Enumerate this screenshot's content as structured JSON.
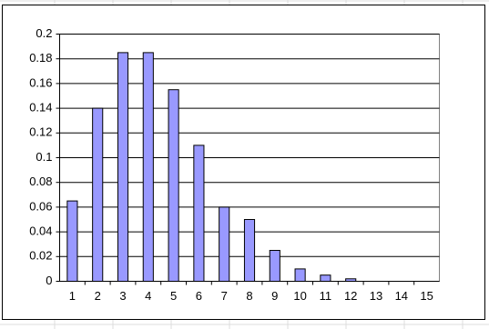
{
  "chart_data": {
    "type": "bar",
    "categories": [
      "1",
      "2",
      "3",
      "4",
      "5",
      "6",
      "7",
      "8",
      "9",
      "10",
      "11",
      "12",
      "13",
      "14",
      "15"
    ],
    "values": [
      0.065,
      0.14,
      0.185,
      0.185,
      0.155,
      0.11,
      0.06,
      0.05,
      0.025,
      0.01,
      0.005,
      0.002,
      0,
      0,
      0
    ],
    "color": "#9999ff",
    "ylim": [
      0,
      0.2
    ],
    "yticks": [
      0,
      0.02,
      0.04,
      0.06,
      0.08,
      0.1,
      0.12,
      0.14,
      0.16,
      0.18,
      0.2
    ],
    "grid": true
  }
}
